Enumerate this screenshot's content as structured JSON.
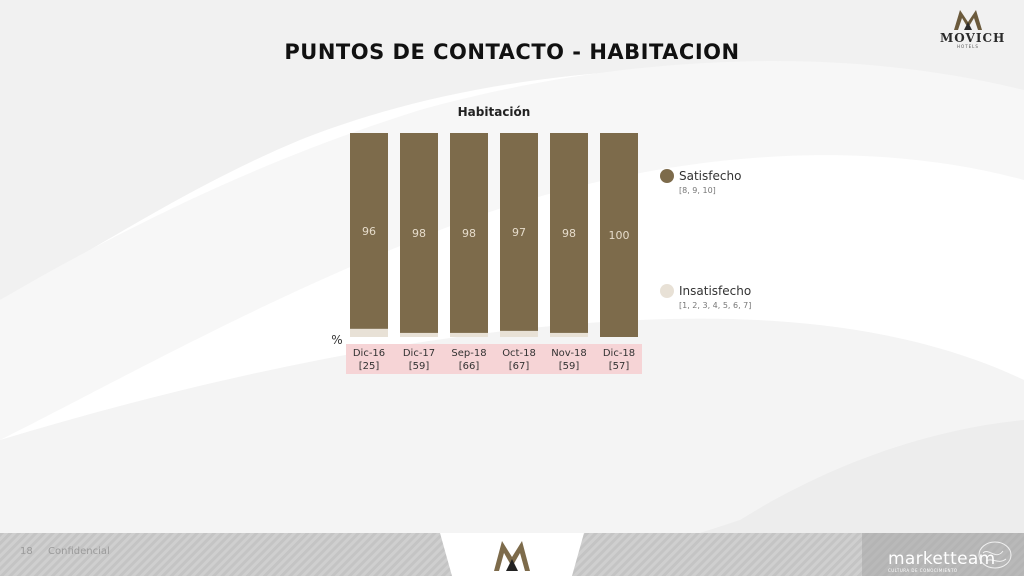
{
  "slide": {
    "title": "PUNTOS DE CONTACTO - HABITACION",
    "page_number": "18",
    "confidential": "Confidencial"
  },
  "brand": {
    "name": "MOVICH",
    "sub": "HOTELS",
    "footer_brand": "marketteam",
    "footer_sub": "CULTURA DE CONOCIMIENTO"
  },
  "colors": {
    "satisfied": "#7d6b4b",
    "dissatisfied": "#e8e1d6",
    "label_band": "#f6d4d6"
  },
  "chart_data": {
    "type": "bar",
    "stacked": true,
    "percent_axis_label": "%",
    "title": "Habitación",
    "categories": [
      "Dic-16",
      "Dic-17",
      "Sep-18",
      "Oct-18",
      "Nov-18",
      "Dic-18"
    ],
    "bases": [
      "[25]",
      "[59]",
      "[66]",
      "[67]",
      "[59]",
      "[57]"
    ],
    "series": [
      {
        "name": "Satisfecho",
        "range": "[8, 9, 10]",
        "values": [
          96,
          98,
          98,
          97,
          98,
          100
        ]
      },
      {
        "name": "Insatisfecho",
        "range": "[1, 2, 3, 4, 5, 6, 7]",
        "values": [
          4,
          2,
          2,
          3,
          2,
          null
        ]
      }
    ],
    "ylim": [
      0,
      100
    ],
    "grid": false,
    "legend_position": "right"
  }
}
